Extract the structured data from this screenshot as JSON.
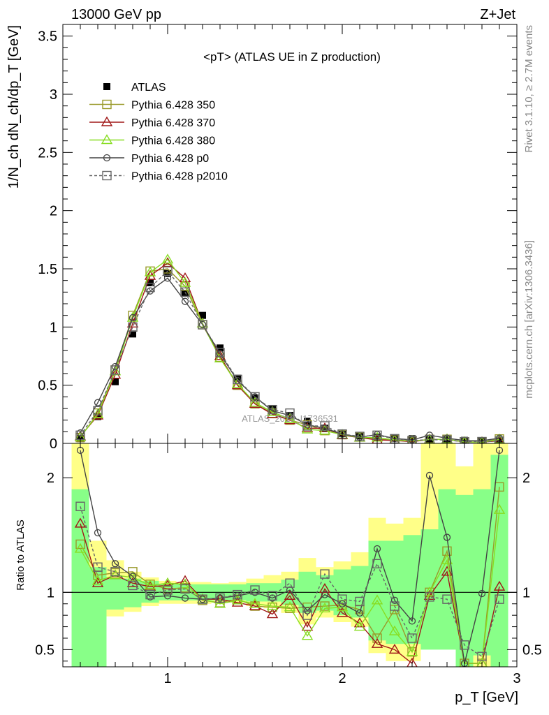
{
  "header": {
    "energy_label": "13000 GeV pp",
    "process_label": "Z+Jet"
  },
  "side_labels": {
    "rivet": "Rivet 3.1.10, ≥ 2.7M events",
    "mcplots": "mcplots.cern.ch [arXiv:1306.3436]"
  },
  "watermark": "ATLAS_2019_I1736531",
  "chart_data": [
    {
      "panel": "main",
      "type": "line",
      "title": "<pT> (ATLAS UE in Z production)",
      "ylabel": "1/N_ch dN_ch/dp_T [GeV]",
      "xlim": [
        0.4,
        3.0
      ],
      "ylim": [
        0,
        3.6
      ],
      "yticks": [
        0,
        0.5,
        1,
        1.5,
        2,
        2.5,
        3,
        3.5
      ],
      "x": [
        0.5,
        0.6,
        0.7,
        0.8,
        0.9,
        1.0,
        1.1,
        1.2,
        1.3,
        1.4,
        1.5,
        1.6,
        1.7,
        1.8,
        1.9,
        2.0,
        2.1,
        2.2,
        2.3,
        2.4,
        2.5,
        2.6,
        2.7,
        2.8,
        2.9
      ],
      "series": [
        {
          "name": "ATLAS",
          "color": "#000000",
          "marker": "filled-square",
          "values": [
            0.04,
            0.23,
            0.53,
            0.94,
            1.38,
            1.46,
            1.29,
            1.1,
            0.82,
            0.56,
            0.39,
            0.3,
            0.24,
            0.19,
            0.13,
            0.085,
            0.065,
            0.055,
            0.045,
            0.04,
            0.035,
            0.03,
            0.026,
            0.023,
            0.02
          ]
        },
        {
          "name": "Pythia 6.428 350",
          "color": "#9a9a2a",
          "marker": "open-square",
          "values": [
            0.05,
            0.26,
            0.63,
            1.1,
            1.48,
            1.5,
            1.35,
            1.02,
            0.74,
            0.5,
            0.34,
            0.26,
            0.2,
            0.16,
            0.11,
            0.075,
            0.055,
            0.035,
            0.03,
            0.02,
            0.035,
            0.035,
            0.012,
            0.012,
            0.038
          ]
        },
        {
          "name": "Pythia 6.428 370",
          "color": "#a01818",
          "marker": "open-triangle",
          "values": [
            0.06,
            0.24,
            0.59,
            1.03,
            1.44,
            1.55,
            1.42,
            1.03,
            0.75,
            0.5,
            0.34,
            0.25,
            0.2,
            0.13,
            0.13,
            0.07,
            0.05,
            0.03,
            0.025,
            0.014,
            0.034,
            0.035,
            0.011,
            0.011,
            0.022
          ]
        },
        {
          "name": "Pythia 6.428 380",
          "color": "#88dd22",
          "marker": "open-triangle",
          "values": [
            0.055,
            0.25,
            0.62,
            1.08,
            1.47,
            1.58,
            1.38,
            1.03,
            0.73,
            0.51,
            0.35,
            0.27,
            0.21,
            0.12,
            0.11,
            0.075,
            0.05,
            0.05,
            0.03,
            0.02,
            0.033,
            0.035,
            0.012,
            0.01,
            0.034
          ]
        },
        {
          "name": "Pythia 6.428 p0",
          "color": "#444444",
          "marker": "open-circle",
          "values": [
            0.09,
            0.35,
            0.66,
            1.08,
            1.31,
            1.42,
            1.22,
            1.02,
            0.77,
            0.54,
            0.4,
            0.28,
            0.24,
            0.16,
            0.13,
            0.08,
            0.053,
            0.076,
            0.042,
            0.03,
            0.07,
            0.045,
            0.024,
            0.023,
            0.045
          ]
        },
        {
          "name": "Pythia 6.428 p2010",
          "color": "#666666",
          "marker": "open-square",
          "dashed": true,
          "values": [
            0.07,
            0.28,
            0.63,
            1.0,
            1.34,
            1.48,
            1.3,
            1.02,
            0.78,
            0.55,
            0.4,
            0.29,
            0.26,
            0.15,
            0.15,
            0.08,
            0.06,
            0.07,
            0.04,
            0.024,
            0.033,
            0.028,
            0.014,
            0.015,
            0.019
          ]
        }
      ]
    },
    {
      "panel": "ratio",
      "type": "line",
      "ylabel": "Ratio to ATLAS",
      "xlabel": "p_T [GeV]",
      "xlim": [
        0.4,
        3.0
      ],
      "ylim": [
        0.35,
        2.3
      ],
      "yticks": [
        0.5,
        1,
        2
      ],
      "xticks": [
        1,
        2,
        3
      ],
      "reference_line": 1,
      "x": [
        0.5,
        0.6,
        0.7,
        0.8,
        0.9,
        1.0,
        1.1,
        1.2,
        1.3,
        1.4,
        1.5,
        1.6,
        1.7,
        1.8,
        1.9,
        2.0,
        2.1,
        2.2,
        2.3,
        2.4,
        2.5,
        2.6,
        2.7,
        2.8,
        2.9
      ],
      "bands": {
        "yellow_color": "#ffff88",
        "green_color": "#88ff88",
        "yellow_lo": [
          0.3,
          0.65,
          0.79,
          0.83,
          0.88,
          0.9,
          0.9,
          0.9,
          0.91,
          0.91,
          0.88,
          0.86,
          0.82,
          0.72,
          0.78,
          0.74,
          0.7,
          0.47,
          0.4,
          0.4,
          0.7,
          0.7,
          0.3,
          0.3,
          0.3
        ],
        "yellow_hi": [
          2.3,
          1.45,
          1.28,
          1.18,
          1.13,
          1.1,
          1.09,
          1.09,
          1.08,
          1.09,
          1.12,
          1.15,
          1.18,
          1.3,
          1.22,
          1.27,
          1.35,
          1.65,
          1.6,
          1.65,
          2.3,
          2.3,
          2.1,
          2.3,
          2.3
        ],
        "green_lo": [
          0.3,
          0.3,
          0.85,
          0.87,
          0.91,
          0.93,
          0.93,
          0.93,
          0.93,
          0.93,
          0.92,
          0.92,
          0.89,
          0.82,
          0.84,
          0.8,
          0.78,
          0.58,
          0.55,
          0.55,
          0.5,
          0.5,
          0.35,
          0.45,
          0.3
        ],
        "green_hi": [
          1.9,
          1.22,
          1.12,
          1.12,
          1.1,
          1.07,
          1.07,
          1.07,
          1.07,
          1.07,
          1.08,
          1.08,
          1.11,
          1.18,
          1.15,
          1.2,
          1.23,
          1.45,
          1.45,
          1.5,
          1.55,
          1.9,
          1.85,
          1.9,
          2.2
        ]
      },
      "series": [
        {
          "name": "Pythia 6.428 350",
          "color": "#9a9a2a",
          "marker": "open-square",
          "values": [
            1.42,
            1.15,
            1.17,
            1.18,
            1.07,
            1.03,
            1.04,
            0.93,
            0.91,
            0.94,
            0.88,
            0.87,
            0.86,
            0.87,
            0.88,
            0.89,
            0.85,
            0.6,
            0.85,
            0.48,
            1.0,
            1.36,
            0.38,
            0.38,
            1.92
          ]
        },
        {
          "name": "Pythia 6.428 370",
          "color": "#a01818",
          "marker": "open-triangle",
          "values": [
            1.6,
            1.08,
            1.15,
            1.08,
            1.05,
            1.06,
            1.1,
            0.94,
            0.94,
            0.91,
            0.88,
            0.81,
            0.97,
            0.7,
            1.03,
            0.82,
            0.73,
            0.55,
            0.5,
            0.38,
            0.97,
            1.18,
            0.38,
            0.38,
            1.05
          ]
        },
        {
          "name": "Pythia 6.428 380",
          "color": "#88dd22",
          "marker": "open-triangle",
          "values": [
            1.38,
            1.1,
            1.15,
            1.13,
            1.06,
            1.08,
            1.07,
            0.94,
            0.9,
            0.93,
            0.9,
            0.88,
            0.87,
            0.62,
            0.86,
            0.87,
            0.7,
            0.93,
            0.66,
            0.48,
            1.0,
            1.28,
            0.38,
            0.38,
            1.72
          ]
        },
        {
          "name": "Pythia 6.428 p0",
          "color": "#444444",
          "marker": "open-circle",
          "values": [
            2.24,
            1.52,
            1.25,
            1.14,
            0.96,
            0.97,
            0.95,
            0.94,
            0.95,
            0.97,
            1.0,
            0.95,
            1.02,
            0.84,
            0.98,
            0.9,
            0.82,
            1.38,
            0.93,
            0.75,
            2.02,
            1.48,
            0.38,
            0.99,
            2.24
          ]
        },
        {
          "name": "Pythia 6.428 p2010",
          "color": "#666666",
          "marker": "open-square",
          "dashed": true,
          "values": [
            1.75,
            1.22,
            1.18,
            1.06,
            0.98,
            1.02,
            1.03,
            0.94,
            0.95,
            0.98,
            1.02,
            0.97,
            1.08,
            0.8,
            1.16,
            0.94,
            0.92,
            1.25,
            0.88,
            0.6,
            0.96,
            0.94,
            0.54,
            0.44,
            0.94
          ]
        }
      ]
    }
  ]
}
